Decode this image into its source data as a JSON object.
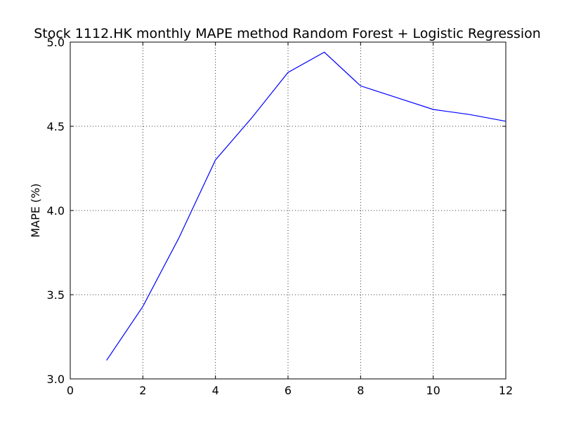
{
  "chart_data": {
    "type": "line",
    "title": "Stock 1112.HK monthly MAPE method Random Forest + Logistic Regression",
    "xlabel": "",
    "ylabel": "MAPE (%)",
    "xlim": [
      0,
      12
    ],
    "ylim": [
      3.0,
      5.0
    ],
    "x_ticks": [
      "0",
      "2",
      "4",
      "6",
      "8",
      "10",
      "12"
    ],
    "y_ticks": [
      "3.0",
      "3.5",
      "4.0",
      "4.5",
      "5.0"
    ],
    "grid": true,
    "series": [
      {
        "color": "#0000ff",
        "x": [
          1,
          2,
          3,
          4,
          5,
          6,
          7,
          8,
          9,
          10,
          11,
          12
        ],
        "values": [
          3.11,
          3.43,
          3.84,
          4.3,
          4.55,
          4.82,
          4.94,
          4.74,
          4.67,
          4.6,
          4.57,
          4.53
        ]
      }
    ]
  }
}
